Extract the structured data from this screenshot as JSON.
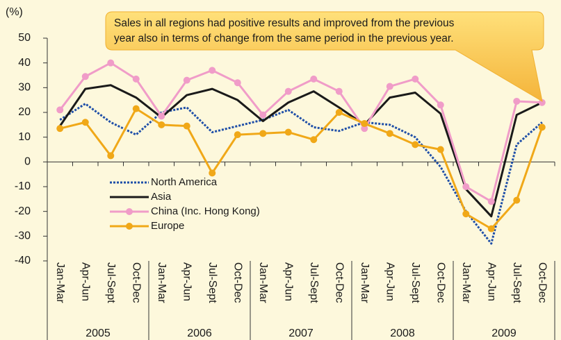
{
  "chart_data": {
    "type": "line",
    "unit_label": "(%)",
    "annotations": [
      "Sales in all regions had positive results and improved from the previous",
      "year also in terms of change from the same period in the previous year."
    ],
    "categories": [
      "Jan-Mar",
      "Apr-Jun",
      "Jul-Sept",
      "Oct-Dec",
      "Jan-Mar",
      "Apr-Jun",
      "Jul-Sept",
      "Oct-Dec",
      "Jan-Mar",
      "Apr-Jun",
      "Jul-Sept",
      "Oct-Dec",
      "Jan-Mar",
      "Apr-Jun",
      "Jul-Sept",
      "Oct-Dec",
      "Jan-Mar",
      "Apr-Jun",
      "Jul-Sept",
      "Oct-Dec"
    ],
    "years": [
      "2005",
      "2006",
      "2007",
      "2008",
      "2009"
    ],
    "ylim": [
      -40,
      50
    ],
    "yticks": [
      50,
      40,
      30,
      20,
      10,
      0,
      -10,
      -20,
      -30,
      -40
    ],
    "series": [
      {
        "name": "North America",
        "color": "#1f4fa8",
        "dash": true,
        "marker": false,
        "values": [
          17,
          23.5,
          16,
          11,
          20,
          22,
          12,
          14.5,
          17,
          21,
          14,
          12.5,
          16,
          15,
          10,
          -2,
          -20,
          -33,
          7,
          16
        ]
      },
      {
        "name": "Asia",
        "color": "#1a1a1a",
        "dash": false,
        "marker": false,
        "values": [
          14.5,
          29.5,
          31,
          26,
          18,
          27,
          29.5,
          25,
          16.5,
          24,
          28.5,
          22,
          15,
          26,
          28,
          19.5,
          -11,
          -22,
          19,
          24
        ]
      },
      {
        "name": "China (Inc. Hong Kong)",
        "color": "#f09cc8",
        "dash": false,
        "marker": true,
        "values": [
          21,
          34.5,
          40,
          33.5,
          18.5,
          33,
          37,
          32,
          19,
          28.5,
          33.5,
          28.5,
          13.5,
          30.5,
          33.5,
          23,
          -10,
          -16,
          24.5,
          24
        ]
      },
      {
        "name": "Europe",
        "color": "#f0a818",
        "dash": false,
        "marker": true,
        "values": [
          13.5,
          16,
          2.5,
          21.5,
          15,
          14.5,
          -4.5,
          11,
          11.5,
          12,
          9,
          20,
          15.5,
          11.5,
          7,
          5,
          -21,
          -27,
          -15.5,
          14
        ]
      }
    ]
  }
}
